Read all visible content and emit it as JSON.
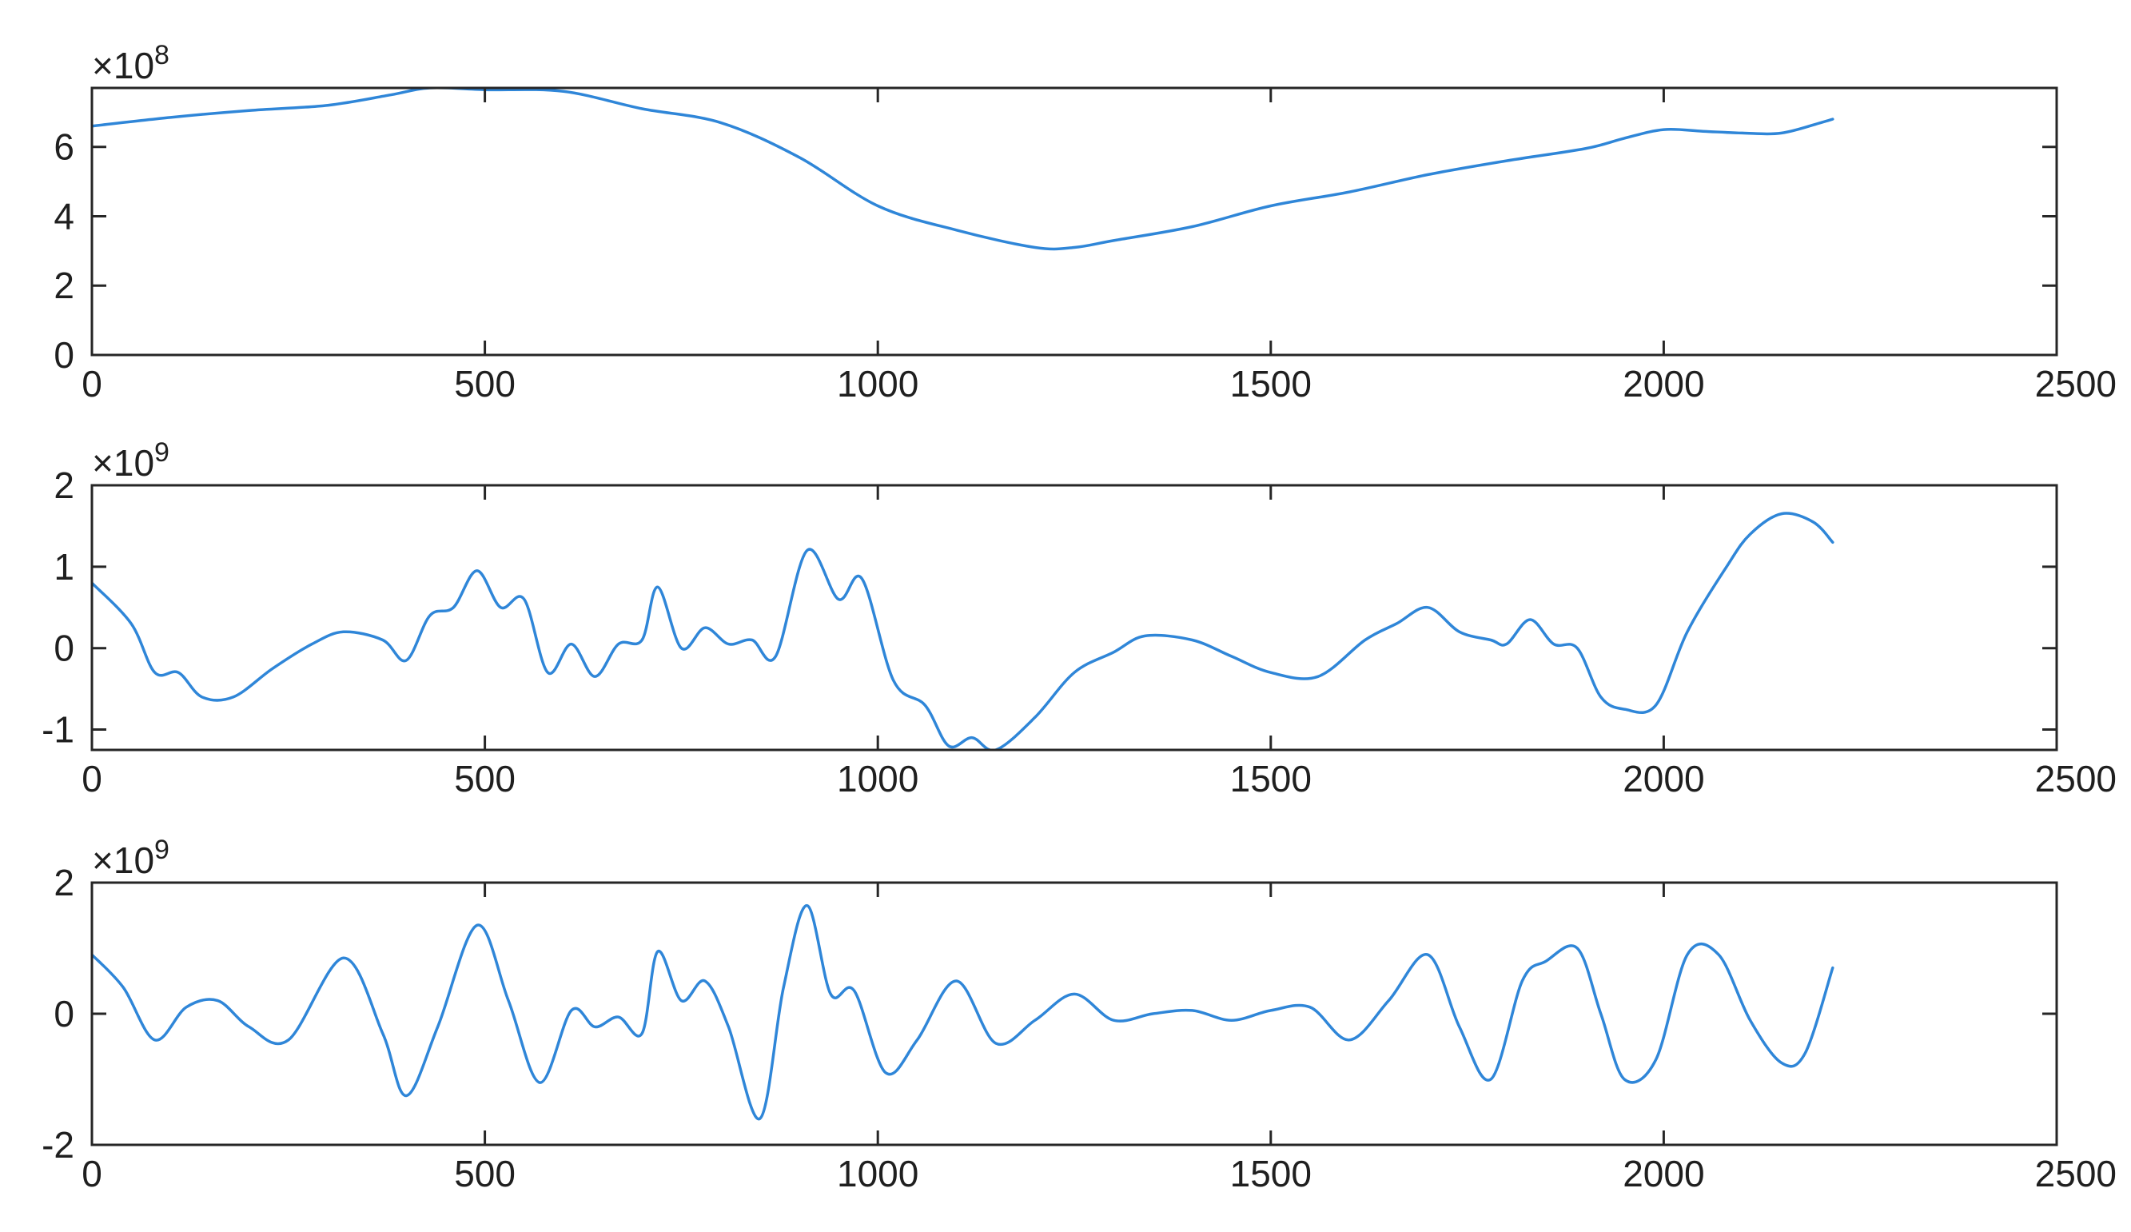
{
  "colors": {
    "series": "#2f86d8",
    "axis": "#262626"
  },
  "chart_data": [
    {
      "type": "line",
      "exponent": "×10",
      "exponent_power": "8",
      "xlim": [
        0,
        2500
      ],
      "ylim": [
        0,
        7.7
      ],
      "xticks": [
        0,
        500,
        1000,
        1500,
        2000,
        2500
      ],
      "yticks": [
        0,
        2,
        4,
        6
      ],
      "xtick_labels": [
        "0",
        "500",
        "1000",
        "1500",
        "2000",
        "2500"
      ],
      "ytick_labels": [
        "0",
        "2",
        "4",
        "6"
      ],
      "grid": false,
      "series": [
        {
          "x": [
            0,
            100,
            200,
            300,
            380,
            430,
            500,
            600,
            700,
            800,
            900,
            1000,
            1100,
            1200,
            1250,
            1300,
            1400,
            1500,
            1600,
            1700,
            1800,
            1900,
            1950,
            2000,
            2050,
            2100,
            2150,
            2200,
            2215
          ],
          "y": [
            6.6,
            6.85,
            7.05,
            7.2,
            7.5,
            7.7,
            7.65,
            7.6,
            7.1,
            6.7,
            5.7,
            4.3,
            3.6,
            3.1,
            3.1,
            3.3,
            3.7,
            4.3,
            4.7,
            5.2,
            5.6,
            5.95,
            6.25,
            6.5,
            6.45,
            6.4,
            6.4,
            6.7,
            6.8
          ]
        }
      ]
    },
    {
      "type": "line",
      "exponent": "×10",
      "exponent_power": "9",
      "xlim": [
        0,
        2500
      ],
      "ylim": [
        -1.25,
        2
      ],
      "xticks": [
        0,
        500,
        1000,
        1500,
        2000,
        2500
      ],
      "yticks": [
        -1,
        0,
        1,
        2
      ],
      "xtick_labels": [
        "0",
        "500",
        "1000",
        "1500",
        "2000",
        "2500"
      ],
      "ytick_labels": [
        "-1",
        "0",
        "1",
        "2"
      ],
      "grid": false,
      "series": [
        {
          "x": [
            0,
            50,
            80,
            110,
            140,
            180,
            230,
            280,
            320,
            370,
            400,
            430,
            460,
            490,
            520,
            550,
            580,
            610,
            640,
            670,
            700,
            720,
            750,
            780,
            810,
            840,
            870,
            910,
            950,
            980,
            1020,
            1060,
            1090,
            1120,
            1150,
            1200,
            1250,
            1300,
            1340,
            1400,
            1450,
            1500,
            1560,
            1620,
            1660,
            1700,
            1740,
            1780,
            1800,
            1830,
            1860,
            1890,
            1920,
            1950,
            1990,
            2030,
            2080,
            2110,
            2150,
            2190,
            2215
          ],
          "y": [
            0.8,
            0.3,
            -0.3,
            -0.3,
            -0.6,
            -0.6,
            -0.25,
            0.05,
            0.2,
            0.1,
            -0.15,
            0.4,
            0.5,
            0.95,
            0.5,
            0.6,
            -0.3,
            0.05,
            -0.35,
            0.05,
            0.1,
            0.75,
            0.0,
            0.25,
            0.05,
            0.1,
            -0.1,
            1.2,
            0.6,
            0.85,
            -0.4,
            -0.7,
            -1.2,
            -1.1,
            -1.25,
            -0.85,
            -0.3,
            -0.05,
            0.15,
            0.1,
            -0.1,
            -0.3,
            -0.35,
            0.1,
            0.3,
            0.5,
            0.2,
            0.1,
            0.05,
            0.35,
            0.05,
            0.0,
            -0.6,
            -0.75,
            -0.7,
            0.2,
            1.0,
            1.4,
            1.65,
            1.55,
            1.3
          ]
        }
      ]
    },
    {
      "type": "line",
      "exponent": "×10",
      "exponent_power": "9",
      "xlim": [
        0,
        2500
      ],
      "ylim": [
        -2,
        2
      ],
      "xticks": [
        0,
        500,
        1000,
        1500,
        2000,
        2500
      ],
      "yticks": [
        -2,
        0,
        2
      ],
      "xtick_labels": [
        "0",
        "500",
        "1000",
        "1500",
        "2000",
        "2500"
      ],
      "ytick_labels": [
        "-2",
        "0",
        "2"
      ],
      "grid": false,
      "series": [
        {
          "x": [
            0,
            40,
            80,
            120,
            160,
            200,
            250,
            320,
            370,
            400,
            440,
            490,
            530,
            570,
            610,
            640,
            670,
            700,
            720,
            750,
            780,
            810,
            850,
            880,
            910,
            940,
            970,
            1010,
            1050,
            1100,
            1150,
            1200,
            1250,
            1300,
            1350,
            1400,
            1450,
            1500,
            1550,
            1600,
            1650,
            1700,
            1740,
            1780,
            1820,
            1850,
            1890,
            1920,
            1950,
            1990,
            2030,
            2070,
            2110,
            2150,
            2180,
            2215
          ],
          "y": [
            0.9,
            0.4,
            -0.4,
            0.1,
            0.2,
            -0.2,
            -0.4,
            0.85,
            -0.3,
            -1.25,
            -0.2,
            1.35,
            0.2,
            -1.05,
            0.05,
            -0.2,
            -0.05,
            -0.3,
            0.95,
            0.2,
            0.5,
            -0.2,
            -1.6,
            0.4,
            1.65,
            0.3,
            0.35,
            -0.9,
            -0.4,
            0.5,
            -0.45,
            -0.1,
            0.3,
            -0.1,
            0.0,
            0.05,
            -0.1,
            0.05,
            0.1,
            -0.4,
            0.2,
            0.9,
            -0.2,
            -1.0,
            0.5,
            0.8,
            1.0,
            0.0,
            -1.0,
            -0.7,
            0.9,
            0.9,
            -0.1,
            -0.75,
            -0.6,
            0.7
          ]
        }
      ]
    }
  ]
}
